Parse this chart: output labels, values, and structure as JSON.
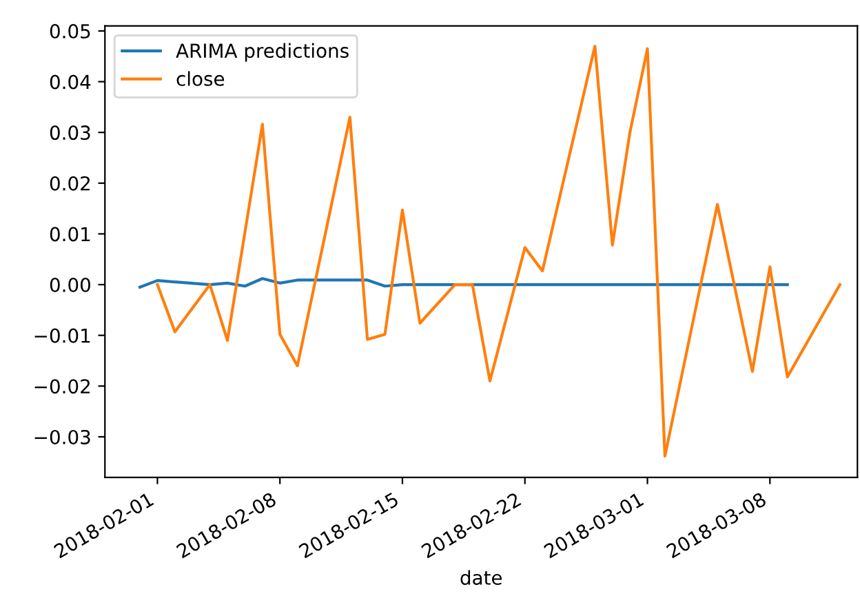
{
  "chart_data": {
    "type": "line",
    "xlabel": "date",
    "xlim": [
      "2018-01-29",
      "2018-03-13"
    ],
    "xticks": [
      {
        "value": "2018-02-01",
        "label": "2018-02-01"
      },
      {
        "value": "2018-02-08",
        "label": "2018-02-08"
      },
      {
        "value": "2018-02-15",
        "label": "2018-02-15"
      },
      {
        "value": "2018-02-22",
        "label": "2018-02-22"
      },
      {
        "value": "2018-03-01",
        "label": "2018-03-01"
      },
      {
        "value": "2018-03-08",
        "label": "2018-03-08"
      }
    ],
    "ylim": [
      -0.038,
      0.051
    ],
    "yticks": [
      {
        "value": -0.03,
        "label": "−0.03"
      },
      {
        "value": -0.02,
        "label": "−0.02"
      },
      {
        "value": -0.01,
        "label": "−0.01"
      },
      {
        "value": 0,
        "label": "0.00"
      },
      {
        "value": 0.01,
        "label": "0.01"
      },
      {
        "value": 0.02,
        "label": "0.02"
      },
      {
        "value": 0.03,
        "label": "0.03"
      },
      {
        "value": 0.04,
        "label": "0.04"
      },
      {
        "value": 0.05,
        "label": "0.05"
      }
    ],
    "grid": false,
    "legend": "top left",
    "series": [
      {
        "name": "ARIMA predictions",
        "color": "#1f77b4",
        "x": [
          "2018-01-31",
          "2018-02-01",
          "2018-02-04",
          "2018-02-05",
          "2018-02-06",
          "2018-02-07",
          "2018-02-08",
          "2018-02-09",
          "2018-02-13",
          "2018-02-14",
          "2018-02-15",
          "2018-03-09"
        ],
        "values": [
          -0.0005,
          0.0008,
          0.0,
          0.0003,
          -0.0003,
          0.0012,
          0.0003,
          0.0009,
          0.0009,
          -0.0003,
          0.0,
          0.0
        ]
      },
      {
        "name": "close",
        "color": "#ff7f0e",
        "x": [
          "2018-02-01",
          "2018-02-02",
          "2018-02-04",
          "2018-02-05",
          "2018-02-07",
          "2018-02-08",
          "2018-02-09",
          "2018-02-12",
          "2018-02-13",
          "2018-02-14",
          "2018-02-15",
          "2018-02-16",
          "2018-02-18",
          "2018-02-19",
          "2018-02-20",
          "2018-02-22",
          "2018-02-23",
          "2018-02-26",
          "2018-02-27",
          "2018-02-28",
          "2018-03-01",
          "2018-03-02",
          "2018-03-05",
          "2018-03-07",
          "2018-03-08",
          "2018-03-09",
          "2018-03-12"
        ],
        "values": [
          0.0,
          -0.0093,
          0.0,
          -0.011,
          0.0316,
          -0.0098,
          -0.016,
          0.033,
          -0.0108,
          -0.0098,
          0.0147,
          -0.0076,
          0.0,
          0.0,
          -0.019,
          0.0073,
          0.0027,
          0.047,
          0.0078,
          0.03,
          0.0465,
          -0.0338,
          0.0158,
          -0.0171,
          0.0035,
          -0.0182,
          0.0
        ]
      }
    ]
  }
}
